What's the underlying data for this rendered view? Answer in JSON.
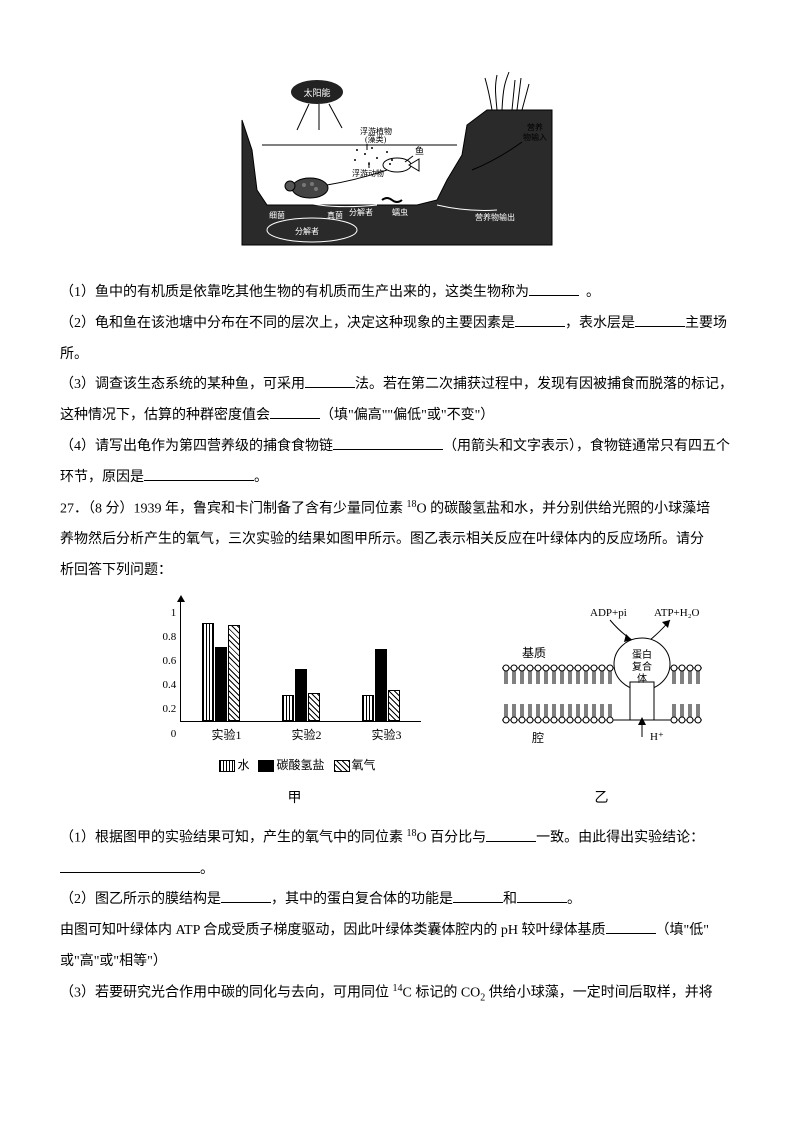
{
  "pond_diagram": {
    "labels": {
      "sun": "太阳能",
      "phyto": "浮游植物\n(藻类)",
      "zoo": "浮游动物",
      "fish": "鱼",
      "turtle": "龟",
      "bacteria": "细菌",
      "fungi": "真菌",
      "worm": "蠕虫",
      "decomposer": "分解者",
      "input": "营养\n物输入",
      "output": "营养物输出"
    },
    "colors": {
      "ground": "#2a2a2a",
      "water": "#ffffff",
      "outline": "#000000"
    }
  },
  "q26": {
    "p1": "（1）鱼中的有机质是依靠吃其他生物的有机质而生产出来的，这类生物称为",
    "p1_end": "。",
    "p2a": "（2）龟和鱼在该池塘中分布在不同的层次上，决定这种现象的主要因素是",
    "p2b": "，表水层是",
    "p2c": "主要场",
    "p2d": "所。",
    "p3a": "（3）调查该生态系统的某种鱼，可采用",
    "p3b": "法。若在第二次捕获过程中，发现有因被捕食而脱落的标记，",
    "p3c": "这种情况下，估算的种群密度值会",
    "p3d": "（填\"偏高\"\"偏低\"或\"不变\"）",
    "p4a": "（4）请写出龟作为第四营养级的捕食食物链",
    "p4b": "（用箭头和文字表示），食物链通常只有四五个",
    "p4c": "环节，原因是",
    "p4d": "。"
  },
  "q27": {
    "header": "27．（8 分）1939 年，鲁宾和卡门制备了含有少量同位素 ",
    "iso18O_prefix": "18",
    "O": "O",
    "header2": " 的碳酸氢盐和水，并分别供给光照的小球藻培",
    "header3": "养物然后分析产生的氧气，三次实验的结果如图甲所示。图乙表示相关反应在叶绿体内的反应场所。请分",
    "header4": "析回答下列问题：",
    "chart": {
      "ymax": 1,
      "yticks": [
        0,
        0.2,
        0.4,
        0.6,
        0.8,
        1
      ],
      "xlabels": [
        "实验1",
        "实验2",
        "实验3"
      ],
      "series": [
        "水",
        "碳酸氢盐",
        "氧气"
      ],
      "values": [
        [
          0.8,
          0.6,
          0.78
        ],
        [
          0.2,
          0.42,
          0.22
        ],
        [
          0.2,
          0.58,
          0.24
        ]
      ],
      "bar_height_scale": 120,
      "colors": {
        "axis": "#000000",
        "water_pattern": "vertical-stripes",
        "salt": "#000000",
        "oxygen_pattern": "diagonal-stripes"
      },
      "legend_title": "甲"
    },
    "diagram_yi": {
      "labels": {
        "stroma": "基质",
        "lumen": "腔",
        "complex": "蛋白复合体",
        "hplus": "H⁺",
        "left": "ADP+pi",
        "right": "ATP+H₂O"
      },
      "title": "乙"
    },
    "p1a": "（1）根据图甲的实验结果可知，产生的氧气中的同位素 ",
    "p1b": " 百分比与",
    "p1c": "一致。由此得出实验结论：",
    "p1d": "。",
    "p2a": "（2）图乙所示的膜结构是",
    "p2b": "，其中的蛋白复合体的功能是",
    "p2c": "和",
    "p2d": "。",
    "p2e": "由图可知叶绿体内 ATP 合成受质子梯度驱动，因此叶绿体类囊体腔内的 pH 较叶绿体基质",
    "p2f": "（填\"低\"",
    "p2g": "或\"高\"或\"相等\"）",
    "p3a": "（3）若要研究光合作用中碳的同化与去向，可用同位 ",
    "iso14C_prefix": "14",
    "C": "C",
    "p3b": " 标记的 CO",
    "sub2": "2",
    "p3c": " 供给小球藻，一定时间后取样，并将"
  }
}
